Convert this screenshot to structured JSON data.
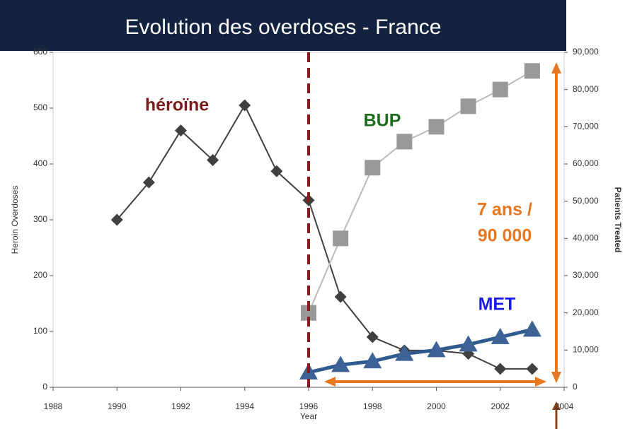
{
  "chart_data": {
    "type": "line",
    "title": "Evolution des overdoses - France",
    "xlabel": "Year",
    "ylabel": "Heroin Overdoses",
    "y2label": "Patients Treated",
    "xlim": [
      1988,
      2004
    ],
    "xticks": [
      1988,
      1990,
      1992,
      1994,
      1996,
      1998,
      2000,
      2002,
      2004
    ],
    "ylim": [
      0,
      600
    ],
    "yticks": [
      0,
      100,
      200,
      300,
      400,
      500,
      600
    ],
    "y2lim": [
      0,
      90000
    ],
    "y2ticks": [
      0,
      {
        "value": 10000,
        "label": "10,000"
      },
      {
        "value": 20000,
        "label": "20,000"
      },
      {
        "value": 30000,
        "label": "30,000"
      },
      {
        "value": 40000,
        "label": "40,000"
      },
      {
        "value": 50000,
        "label": "50,000"
      },
      {
        "value": 60000,
        "label": "60,000"
      },
      {
        "value": 70000,
        "label": "70,000"
      },
      {
        "value": 80000,
        "label": "80,000"
      },
      {
        "value": 90000,
        "label": "90,000"
      }
    ],
    "vline_x": 1996,
    "series": [
      {
        "name": "héroïne",
        "color": "#404040",
        "marker": "diamond",
        "x": [
          1990,
          1991,
          1992,
          1993,
          1994,
          1995,
          1996,
          1997,
          1998,
          1999,
          2000,
          2001,
          2002,
          2003
        ],
        "values": [
          300,
          367,
          460,
          407,
          505,
          387,
          335,
          162,
          90,
          66,
          66,
          60,
          33,
          33
        ]
      },
      {
        "name": "BUP",
        "color": "#999999",
        "marker": "square",
        "axis": "y2",
        "x": [
          1996,
          1997,
          1998,
          1999,
          2000,
          2001,
          2002,
          2003
        ],
        "values": [
          20000,
          40000,
          59000,
          66000,
          70000,
          75500,
          80000,
          85000
        ]
      },
      {
        "name": "MET",
        "color": "#3d6396",
        "marker": "triangle",
        "axis": "y2",
        "x": [
          1996,
          1997,
          1998,
          1999,
          2000,
          2001,
          2002,
          2003
        ],
        "values": [
          4000,
          6000,
          7000,
          9000,
          10000,
          11500,
          13500,
          15500
        ]
      }
    ],
    "annotations": [
      "7 ans /",
      "90 000"
    ]
  }
}
